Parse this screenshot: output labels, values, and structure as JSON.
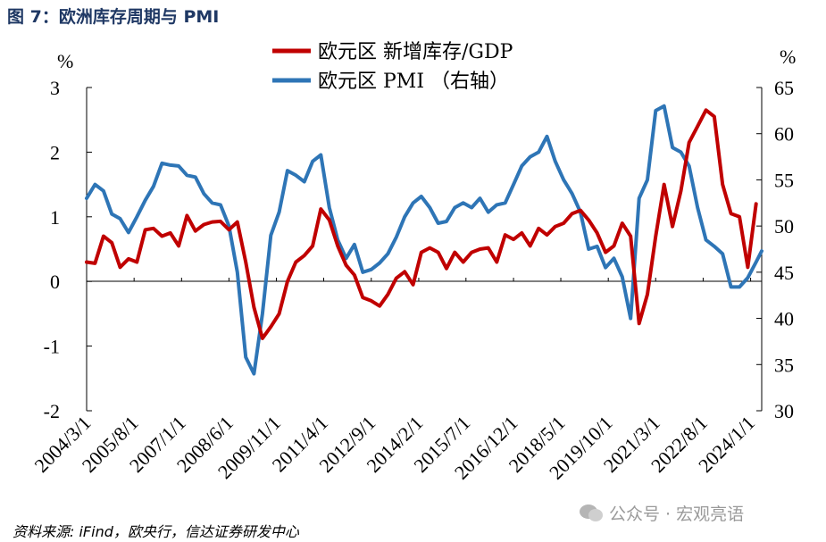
{
  "figure": {
    "title": "图 7：欧洲库存周期与 PMI",
    "source": "资料来源: iFind，欧央行，信达证券研发中心",
    "watermark": "公众号 · 宏观亮语"
  },
  "chart_data": {
    "type": "line",
    "title": "",
    "left_axis": {
      "unit": "%",
      "ylim": [
        -2,
        3
      ],
      "ticks": [
        "3",
        "2",
        "1",
        "0",
        "-1",
        "-2"
      ]
    },
    "right_axis": {
      "unit": "%",
      "ylim": [
        30,
        65
      ],
      "ticks": [
        "65",
        "60",
        "55",
        "50",
        "45",
        "40",
        "35",
        "30"
      ]
    },
    "x_tick_labels": [
      "2004/3/1",
      "2005/8/1",
      "2007/1/1",
      "2008/6/1",
      "2009/11/1",
      "2011/4/1",
      "2012/9/1",
      "2014/2/1",
      "2015/7/1",
      "2016/12/1",
      "2018/5/1",
      "2019/10/1",
      "2021/3/1",
      "2022/8/1",
      "2024/1/1"
    ],
    "x_range": [
      "2004/3/1",
      "2024/5/1"
    ],
    "colors": {
      "inventory": "#c00000",
      "pmi": "#2e75b6"
    },
    "series": [
      {
        "name": "欧元区 新增库存/GDP",
        "axis": "left",
        "points": [
          [
            "2004/3/1",
            0.3
          ],
          [
            "2004/6/1",
            0.28
          ],
          [
            "2004/9/1",
            0.7
          ],
          [
            "2004/12/1",
            0.6
          ],
          [
            "2005/3/1",
            0.22
          ],
          [
            "2005/6/1",
            0.35
          ],
          [
            "2005/9/1",
            0.3
          ],
          [
            "2005/12/1",
            0.8
          ],
          [
            "2006/3/1",
            0.82
          ],
          [
            "2006/6/1",
            0.7
          ],
          [
            "2006/9/1",
            0.75
          ],
          [
            "2006/12/1",
            0.55
          ],
          [
            "2007/3/1",
            1.02
          ],
          [
            "2007/6/1",
            0.78
          ],
          [
            "2007/9/1",
            0.88
          ],
          [
            "2007/12/1",
            0.92
          ],
          [
            "2008/3/1",
            0.93
          ],
          [
            "2008/6/1",
            0.8
          ],
          [
            "2008/9/1",
            0.92
          ],
          [
            "2008/12/1",
            0.3
          ],
          [
            "2009/3/1",
            -0.4
          ],
          [
            "2009/6/1",
            -0.88
          ],
          [
            "2009/9/1",
            -0.7
          ],
          [
            "2009/12/1",
            -0.5
          ],
          [
            "2010/3/1",
            0.0
          ],
          [
            "2010/6/1",
            0.3
          ],
          [
            "2010/9/1",
            0.4
          ],
          [
            "2010/12/1",
            0.55
          ],
          [
            "2011/3/1",
            1.12
          ],
          [
            "2011/6/1",
            0.95
          ],
          [
            "2011/9/1",
            0.55
          ],
          [
            "2011/12/1",
            0.25
          ],
          [
            "2012/3/1",
            0.1
          ],
          [
            "2012/6/1",
            -0.25
          ],
          [
            "2012/9/1",
            -0.3
          ],
          [
            "2012/12/1",
            -0.38
          ],
          [
            "2013/3/1",
            -0.2
          ],
          [
            "2013/6/1",
            0.05
          ],
          [
            "2013/9/1",
            0.15
          ],
          [
            "2013/12/1",
            -0.05
          ],
          [
            "2014/3/1",
            0.45
          ],
          [
            "2014/6/1",
            0.52
          ],
          [
            "2014/9/1",
            0.45
          ],
          [
            "2014/12/1",
            0.2
          ],
          [
            "2015/3/1",
            0.45
          ],
          [
            "2015/6/1",
            0.3
          ],
          [
            "2015/9/1",
            0.45
          ],
          [
            "2015/12/1",
            0.5
          ],
          [
            "2016/3/1",
            0.52
          ],
          [
            "2016/6/1",
            0.3
          ],
          [
            "2016/9/1",
            0.72
          ],
          [
            "2016/12/1",
            0.65
          ],
          [
            "2017/3/1",
            0.75
          ],
          [
            "2017/6/1",
            0.55
          ],
          [
            "2017/9/1",
            0.82
          ],
          [
            "2017/12/1",
            0.72
          ],
          [
            "2018/3/1",
            0.85
          ],
          [
            "2018/6/1",
            0.9
          ],
          [
            "2018/9/1",
            1.05
          ],
          [
            "2018/12/1",
            1.1
          ],
          [
            "2019/3/1",
            0.95
          ],
          [
            "2019/6/1",
            0.75
          ],
          [
            "2019/9/1",
            0.45
          ],
          [
            "2019/12/1",
            0.55
          ],
          [
            "2020/3/1",
            0.9
          ],
          [
            "2020/6/1",
            0.7
          ],
          [
            "2020/9/1",
            -0.65
          ],
          [
            "2020/12/1",
            -0.2
          ],
          [
            "2021/3/1",
            0.7
          ],
          [
            "2021/6/1",
            1.5
          ],
          [
            "2021/9/1",
            0.85
          ],
          [
            "2021/12/1",
            1.4
          ],
          [
            "2022/3/1",
            2.15
          ],
          [
            "2022/6/1",
            2.4
          ],
          [
            "2022/9/1",
            2.65
          ],
          [
            "2022/12/1",
            2.55
          ],
          [
            "2023/3/1",
            1.5
          ],
          [
            "2023/6/1",
            1.05
          ],
          [
            "2023/9/1",
            1.0
          ],
          [
            "2023/12/1",
            0.22
          ],
          [
            "2024/3/1",
            1.2
          ]
        ]
      },
      {
        "name": "欧元区 PMI （右轴）",
        "axis": "right",
        "points": [
          [
            "2004/3/1",
            53.0
          ],
          [
            "2004/6/1",
            54.5
          ],
          [
            "2004/9/1",
            53.8
          ],
          [
            "2004/12/1",
            51.3
          ],
          [
            "2005/3/1",
            50.8
          ],
          [
            "2005/6/1",
            49.3
          ],
          [
            "2005/9/1",
            51.0
          ],
          [
            "2005/12/1",
            52.8
          ],
          [
            "2006/3/1",
            54.3
          ],
          [
            "2006/6/1",
            56.8
          ],
          [
            "2006/9/1",
            56.6
          ],
          [
            "2006/12/1",
            56.5
          ],
          [
            "2007/3/1",
            55.5
          ],
          [
            "2007/6/1",
            55.3
          ],
          [
            "2007/9/1",
            53.5
          ],
          [
            "2007/12/1",
            52.5
          ],
          [
            "2008/3/1",
            52.3
          ],
          [
            "2008/6/1",
            50.0
          ],
          [
            "2008/9/1",
            45.0
          ],
          [
            "2008/12/1",
            35.8
          ],
          [
            "2009/3/1",
            34.0
          ],
          [
            "2009/6/1",
            40.5
          ],
          [
            "2009/9/1",
            49.0
          ],
          [
            "2009/12/1",
            51.5
          ],
          [
            "2010/3/1",
            56.0
          ],
          [
            "2010/6/1",
            55.5
          ],
          [
            "2010/9/1",
            54.8
          ],
          [
            "2010/12/1",
            57.0
          ],
          [
            "2011/3/1",
            57.7
          ],
          [
            "2011/6/1",
            52.0
          ],
          [
            "2011/9/1",
            48.5
          ],
          [
            "2011/12/1",
            46.5
          ],
          [
            "2012/3/1",
            48.0
          ],
          [
            "2012/6/1",
            45.0
          ],
          [
            "2012/9/1",
            45.3
          ],
          [
            "2012/12/1",
            46.0
          ],
          [
            "2013/3/1",
            47.0
          ],
          [
            "2013/6/1",
            48.8
          ],
          [
            "2013/9/1",
            51.0
          ],
          [
            "2013/12/1",
            52.5
          ],
          [
            "2014/3/1",
            53.2
          ],
          [
            "2014/6/1",
            52.0
          ],
          [
            "2014/9/1",
            50.3
          ],
          [
            "2014/12/1",
            50.5
          ],
          [
            "2015/3/1",
            52.0
          ],
          [
            "2015/6/1",
            52.5
          ],
          [
            "2015/9/1",
            52.0
          ],
          [
            "2015/12/1",
            53.0
          ],
          [
            "2016/3/1",
            51.5
          ],
          [
            "2016/6/1",
            52.3
          ],
          [
            "2016/9/1",
            52.5
          ],
          [
            "2016/12/1",
            54.5
          ],
          [
            "2017/3/1",
            56.5
          ],
          [
            "2017/6/1",
            57.5
          ],
          [
            "2017/9/1",
            58.0
          ],
          [
            "2017/12/1",
            59.7
          ],
          [
            "2018/3/1",
            57.0
          ],
          [
            "2018/6/1",
            55.0
          ],
          [
            "2018/9/1",
            53.5
          ],
          [
            "2018/12/1",
            51.5
          ],
          [
            "2019/3/1",
            47.5
          ],
          [
            "2019/6/1",
            47.8
          ],
          [
            "2019/9/1",
            45.5
          ],
          [
            "2019/12/1",
            46.5
          ],
          [
            "2020/3/1",
            44.5
          ],
          [
            "2020/6/1",
            40.0
          ],
          [
            "2020/9/1",
            53.0
          ],
          [
            "2020/12/1",
            55.0
          ],
          [
            "2021/3/1",
            62.5
          ],
          [
            "2021/6/1",
            63.0
          ],
          [
            "2021/9/1",
            58.5
          ],
          [
            "2021/12/1",
            58.0
          ],
          [
            "2022/3/1",
            56.5
          ],
          [
            "2022/6/1",
            52.0
          ],
          [
            "2022/9/1",
            48.5
          ],
          [
            "2022/12/1",
            47.8
          ],
          [
            "2023/3/1",
            47.0
          ],
          [
            "2023/6/1",
            43.4
          ],
          [
            "2023/9/1",
            43.4
          ],
          [
            "2023/12/1",
            44.4
          ],
          [
            "2024/3/1",
            46.1
          ],
          [
            "2024/5/1",
            47.3
          ]
        ]
      }
    ]
  }
}
